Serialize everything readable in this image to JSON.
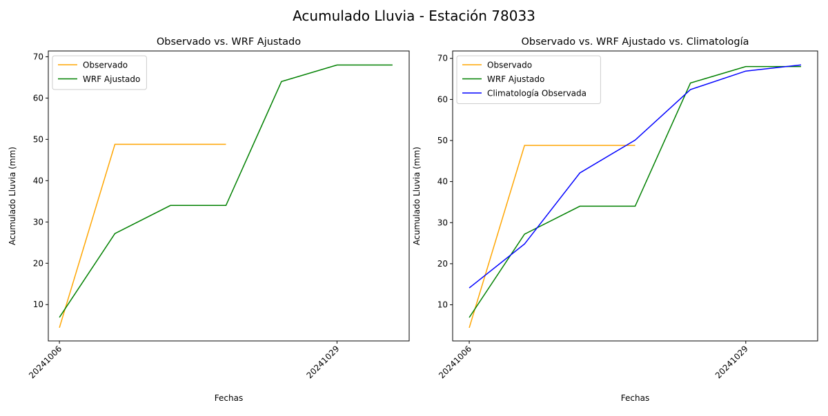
{
  "title": "Acumulado Lluvia - Estación 78033",
  "chart_data": [
    {
      "type": "line",
      "title": "Observado vs. WRF Ajustado",
      "x_label": "Fechas",
      "y_label": "Acumulado Lluvia (mm)",
      "categories": [
        "20241006",
        null,
        null,
        null,
        null,
        "20241029",
        null
      ],
      "series": [
        {
          "name": "Observado",
          "color": "orange",
          "values": [
            4.4,
            48.8,
            48.8,
            48.8,
            null,
            null,
            null
          ]
        },
        {
          "name": "WRF Ajustado",
          "color": "green",
          "values": [
            6.9,
            27.2,
            34.0,
            34.0,
            64.0,
            68.0,
            68.0
          ]
        }
      ],
      "xlim": [
        -0.2,
        6.3
      ],
      "ylim": [
        1.2,
        71.4
      ],
      "yticks": [
        10,
        20,
        30,
        40,
        50,
        60,
        70
      ],
      "legend": "upper left"
    },
    {
      "type": "line",
      "title": "Observado vs. WRF Ajustado vs. Climatología",
      "x_label": "Fechas",
      "y_label": "Acumulado Lluvia (mm)",
      "categories": [
        "20241006",
        null,
        null,
        null,
        null,
        "20241029",
        null
      ],
      "series": [
        {
          "name": "Observado",
          "color": "orange",
          "values": [
            4.4,
            48.8,
            48.8,
            48.8,
            null,
            null,
            null
          ]
        },
        {
          "name": "WRF Ajustado",
          "color": "green",
          "values": [
            6.9,
            27.2,
            34.0,
            34.0,
            64.0,
            68.0,
            68.0
          ]
        },
        {
          "name": "Climatología Observada",
          "color": "blue",
          "values": [
            14.1,
            24.8,
            42.1,
            50.1,
            62.4,
            66.9,
            68.4
          ]
        }
      ],
      "xlim": [
        -0.3,
        6.3
      ],
      "ylim": [
        1.2,
        71.8
      ],
      "yticks": [
        10,
        20,
        30,
        40,
        50,
        60,
        70
      ],
      "legend": "upper left"
    }
  ]
}
